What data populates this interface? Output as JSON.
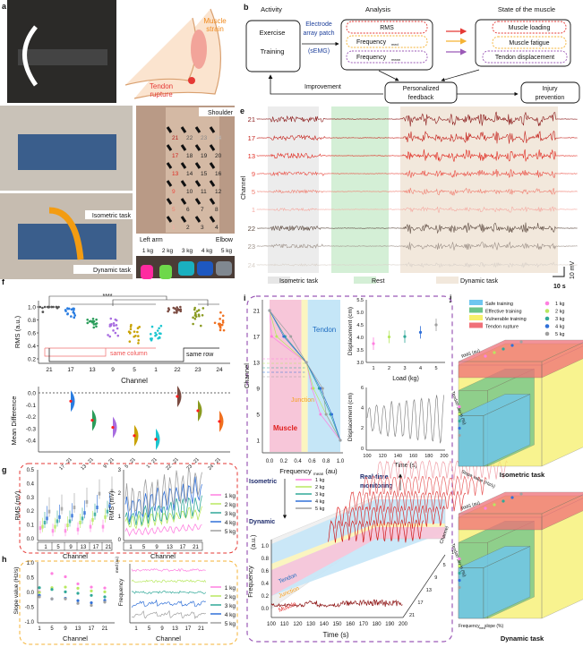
{
  "panel_letters": [
    "a",
    "b",
    "c",
    "d",
    "e",
    "f",
    "g",
    "h",
    "i",
    "j"
  ],
  "a": {
    "muscle_strain": [
      "Muscle",
      "strain"
    ],
    "tendon_rupture": [
      "Tendon",
      "rupture"
    ]
  },
  "b": {
    "activity_title": "Activity",
    "exercise": "Exercise",
    "training": "Training",
    "electrode": [
      "Electrode",
      "array patch",
      "(sEMG)"
    ],
    "analysis_title": "Analysis",
    "rms": "RMS",
    "freq_med": "Frequency",
    "freq_med_sub": "med",
    "freq_mean": "Frequency",
    "freq_mean_sub": "mean",
    "state_title": "State of the muscle",
    "muscle_loading": "Muscle loading",
    "muscle_fatigue": "Muscle fatigue",
    "tendon_displacement": "Tendon displacement",
    "improvement": "Improvement",
    "feedback": [
      "Personalized",
      "feedback"
    ],
    "injury": [
      "Injury",
      "prevention"
    ]
  },
  "c": {
    "isometric": "Isometric task",
    "dynamic": "Dynamic task"
  },
  "d": {
    "shoulder": "Shoulder",
    "left_arm": "Left arm",
    "elbow": "Elbow",
    "electrodes": [
      "21",
      "22",
      "23",
      "24",
      "17",
      "18",
      "19",
      "20",
      "13",
      "14",
      "15",
      "16",
      "9",
      "10",
      "11",
      "12",
      "5",
      "6",
      "7",
      "8",
      "1",
      "2",
      "3",
      "4"
    ],
    "weights": [
      "1 kg",
      "2 kg",
      "3 kg",
      "4 kg",
      "5 kg"
    ]
  },
  "e": {
    "ylabel": "Channel",
    "channels": [
      "21",
      "17",
      "13",
      "9",
      "5",
      "1",
      "22",
      "23",
      "24"
    ],
    "legend": [
      "Isometric task",
      "Rest",
      "Dynamic task"
    ],
    "scale_v": "10 mV",
    "scale_t": "10 s"
  },
  "colors": {
    "channels": [
      "#8b1a1a",
      "#c4221c",
      "#e0281e",
      "#ea4c42",
      "#f07e70",
      "#f5aaa2",
      "#5e4c42",
      "#9c9088",
      "#d9d1ca"
    ],
    "f_groups": [
      "#555555",
      "#2a7de1",
      "#2a9d5a",
      "#a86de0",
      "#c9a200",
      "#1cc6d0",
      "#7a4a40",
      "#8a9a20",
      "#f07020"
    ],
    "loads": [
      "#ff80e0",
      "#b8e860",
      "#30a898",
      "#3070d8",
      "#a0a0a0"
    ],
    "i_border": "#9b59b6",
    "g_border": "#e53935",
    "h_border": "#f5b335"
  },
  "f": {
    "significance": "****",
    "ylabel": "RMS (a.u.)",
    "yticks": [
      "1.0",
      "0.8",
      "0.6",
      "0.4",
      "0.2"
    ],
    "xticks": [
      "21",
      "17",
      "13",
      "9",
      "5",
      "1",
      "22",
      "23",
      "24"
    ],
    "xlabel": "Channel",
    "same_column": "same column",
    "same_row": "same row",
    "median_rms": [
      1.0,
      0.91,
      0.75,
      0.68,
      0.58,
      0.56,
      0.97,
      0.84,
      0.78
    ],
    "md_ylabel": "Mean Difference",
    "md_yticks": [
      "0.0",
      "-0.1",
      "-0.2",
      "-0.3",
      "-0.4"
    ],
    "md_xticks": [
      "17 - 21",
      "13 - 21",
      "9 - 21",
      "5 - 21",
      "1 - 21",
      "22 - 21",
      "23 - 21",
      "24 - 21"
    ],
    "md_values": [
      -0.07,
      -0.23,
      -0.29,
      -0.36,
      -0.39,
      -0.03,
      -0.15,
      -0.24
    ]
  },
  "g": {
    "ylabel": "RMS (mV)",
    "yticks_left": [
      "0.5",
      "0.4",
      "0.3",
      "0.2",
      "0.1",
      "0.0"
    ],
    "yticks_right": [
      "3",
      "2",
      "1",
      "0"
    ],
    "channels": [
      "1",
      "5",
      "9",
      "13",
      "17",
      "21"
    ],
    "xlabel": "Channel",
    "loads": [
      "1 kg",
      "2 kg",
      "3 kg",
      "4 kg",
      "5 kg"
    ],
    "box_medians": [
      [
        0.09,
        0.1,
        0.13,
        0.16,
        0.21
      ],
      [
        0.07,
        0.1,
        0.14,
        0.17,
        0.23
      ],
      [
        0.07,
        0.11,
        0.14,
        0.18,
        0.24
      ],
      [
        0.08,
        0.13,
        0.16,
        0.2,
        0.28
      ],
      [
        0.1,
        0.15,
        0.19,
        0.24,
        0.34
      ],
      [
        0.1,
        0.17,
        0.21,
        0.25,
        0.36
      ]
    ]
  },
  "h": {
    "ylabel": "Slope value (Hz/s)",
    "yticks": [
      "1.0",
      "0.5",
      "0.0",
      "-0.5",
      "-1.0"
    ],
    "channels": [
      "1",
      "5",
      "9",
      "13",
      "17",
      "21"
    ],
    "xlabel": "Channel",
    "ylabel_right": "Frequency",
    "ylabel_right_sub": "med (au)",
    "slopes": [
      [
        0.02,
        0.64,
        0.53,
        0.29,
        0.18,
        0.15
      ],
      [
        0.0,
        0.16,
        0.18,
        0.14,
        0.05,
        0.02
      ],
      [
        0.16,
        0.1,
        0.02,
        -0.03,
        -0.1,
        -0.15
      ],
      [
        -0.1,
        -0.22,
        -0.2,
        -0.28,
        -0.35,
        -0.27
      ],
      [
        -0.15,
        -0.22,
        -0.22,
        -0.37,
        -0.44,
        -0.33
      ]
    ],
    "loads": [
      "1 kg",
      "2 kg",
      "3 kg",
      "4 kg",
      "5 kg"
    ]
  },
  "i": {
    "ylabel": "Channel",
    "yticks": [
      "21",
      "17",
      "13",
      "9",
      "5",
      "1"
    ],
    "xticks": [
      "0.0",
      "0.2",
      "0.4",
      "0.6",
      "0.8",
      "1.0"
    ],
    "xlabel": "Frequency",
    "xlabel_sub": "mean",
    "xlabel_unit": "(au)",
    "regions": [
      "Muscle",
      "Junction",
      "Tendon"
    ],
    "disp_ylabel": "Displacement (cm)",
    "disp_yticks": [
      "5.5",
      "5.0",
      "4.5",
      "4.0",
      "3.5",
      "3.0"
    ],
    "load_xticks": [
      "1",
      "2",
      "3",
      "4",
      "5"
    ],
    "load_xlabel": "Load (kg)",
    "disp_values": [
      3.75,
      4.02,
      4.03,
      4.2,
      4.5
    ],
    "time_yticks": [
      "6",
      "4",
      "2",
      "0"
    ],
    "time_xticks": [
      "100",
      "120",
      "140",
      "160",
      "180",
      "200"
    ],
    "time_xlabel": "Time (s)",
    "isometric": "Isometric",
    "dynamic": "Dynamic",
    "realtime": [
      "Real-time",
      "monitoring"
    ],
    "loads": [
      "1 kg",
      "2 kg",
      "3 kg",
      "4 kg",
      "5 kg"
    ],
    "fm_ylabel": "Frequency",
    "fm_ylabel_sub": "mean",
    "fm_ylabel_unit": "(a.u.)",
    "fm_yticks": [
      "1.0",
      "0.8",
      "0.6",
      "0.4",
      "0.2",
      "0.0"
    ],
    "fm_xticks": [
      "100",
      "110",
      "120",
      "130",
      "140",
      "150",
      "160",
      "170",
      "180",
      "190",
      "200"
    ],
    "fm_xlabel": "Time (s)",
    "depth_label": "Channel",
    "depth_ticks": [
      "1",
      "5",
      "9",
      "13",
      "17",
      "21"
    ]
  },
  "j": {
    "legend": [
      "Safe training",
      "Effective training",
      "Vulnerable training",
      "Tendon rupture"
    ],
    "legend_colors": [
      "#6ec6f0",
      "#6cc48a",
      "#f6f06a",
      "#f07078"
    ],
    "loads": [
      "1 kg",
      "2 kg",
      "3 kg",
      "4 kg",
      "5 kg"
    ],
    "axis_rms": "RMS (au)",
    "axis_strain": "Tendon strain (%)",
    "axis_slope": "Slope value (Hz/s)",
    "axis_freq": "Frequency",
    "axis_freq_sub": "med",
    "axis_freq_rest": " slope (%)",
    "isometric": "Isometric task",
    "dynamic": "Dynamic task"
  }
}
